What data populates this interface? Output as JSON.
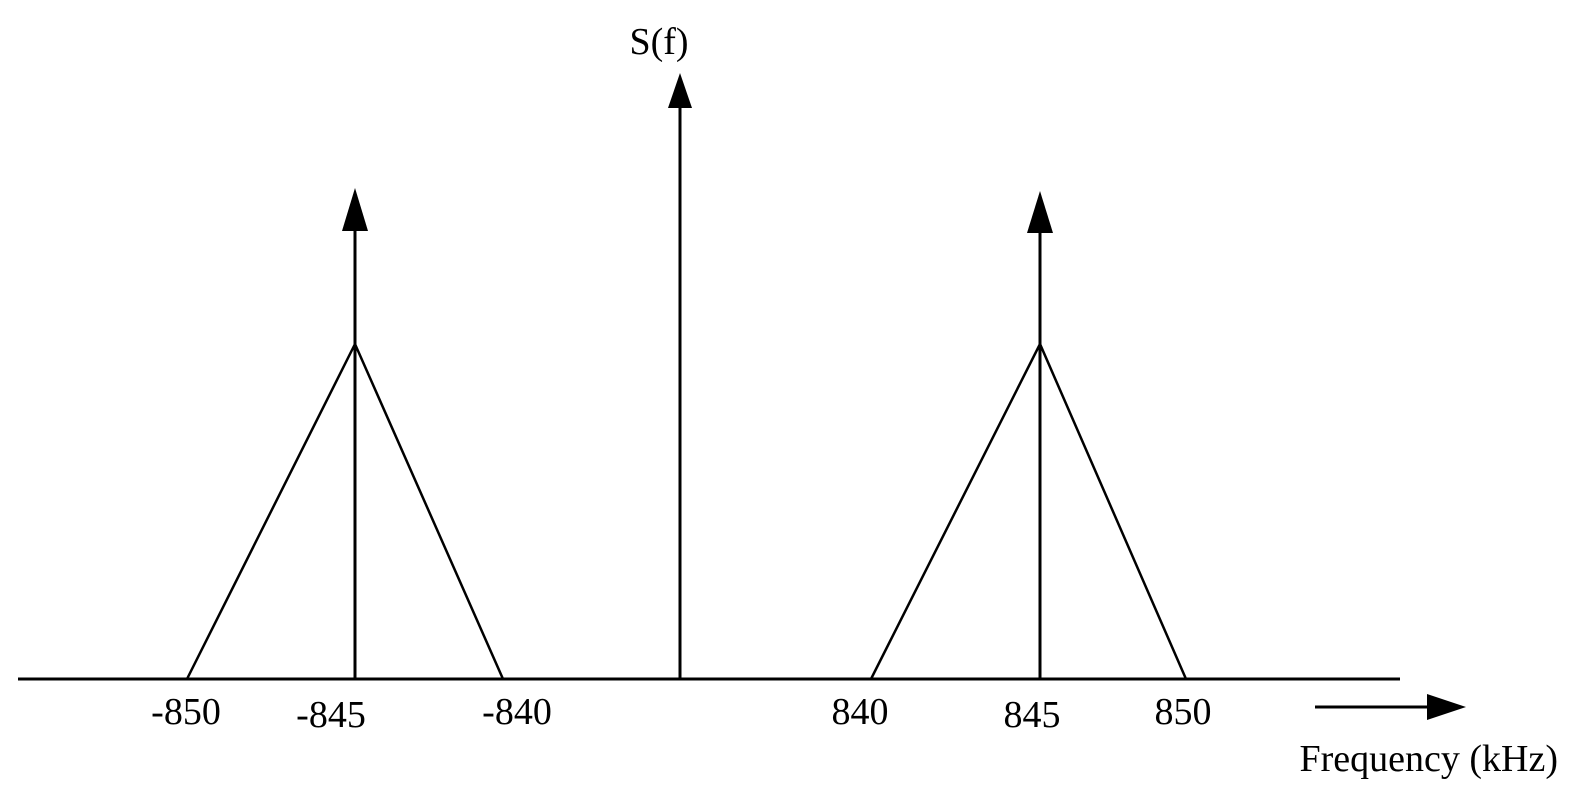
{
  "diagram": {
    "y_axis_label": "S(f)",
    "x_axis_label": "Frequency (kHz)",
    "tick_labels": {
      "neg_850": "-850",
      "neg_845": "-845",
      "neg_840": "-840",
      "pos_840": "840",
      "pos_845": "845",
      "pos_850": "850"
    },
    "spectrum": {
      "carrier_impulse_f": 0,
      "sideband_impulses_f": [
        -845,
        845
      ],
      "triangles": [
        {
          "start": -850,
          "peak": -845,
          "end": -840
        },
        {
          "start": 840,
          "peak": 845,
          "end": 850
        }
      ]
    },
    "line_color": "#000000"
  }
}
